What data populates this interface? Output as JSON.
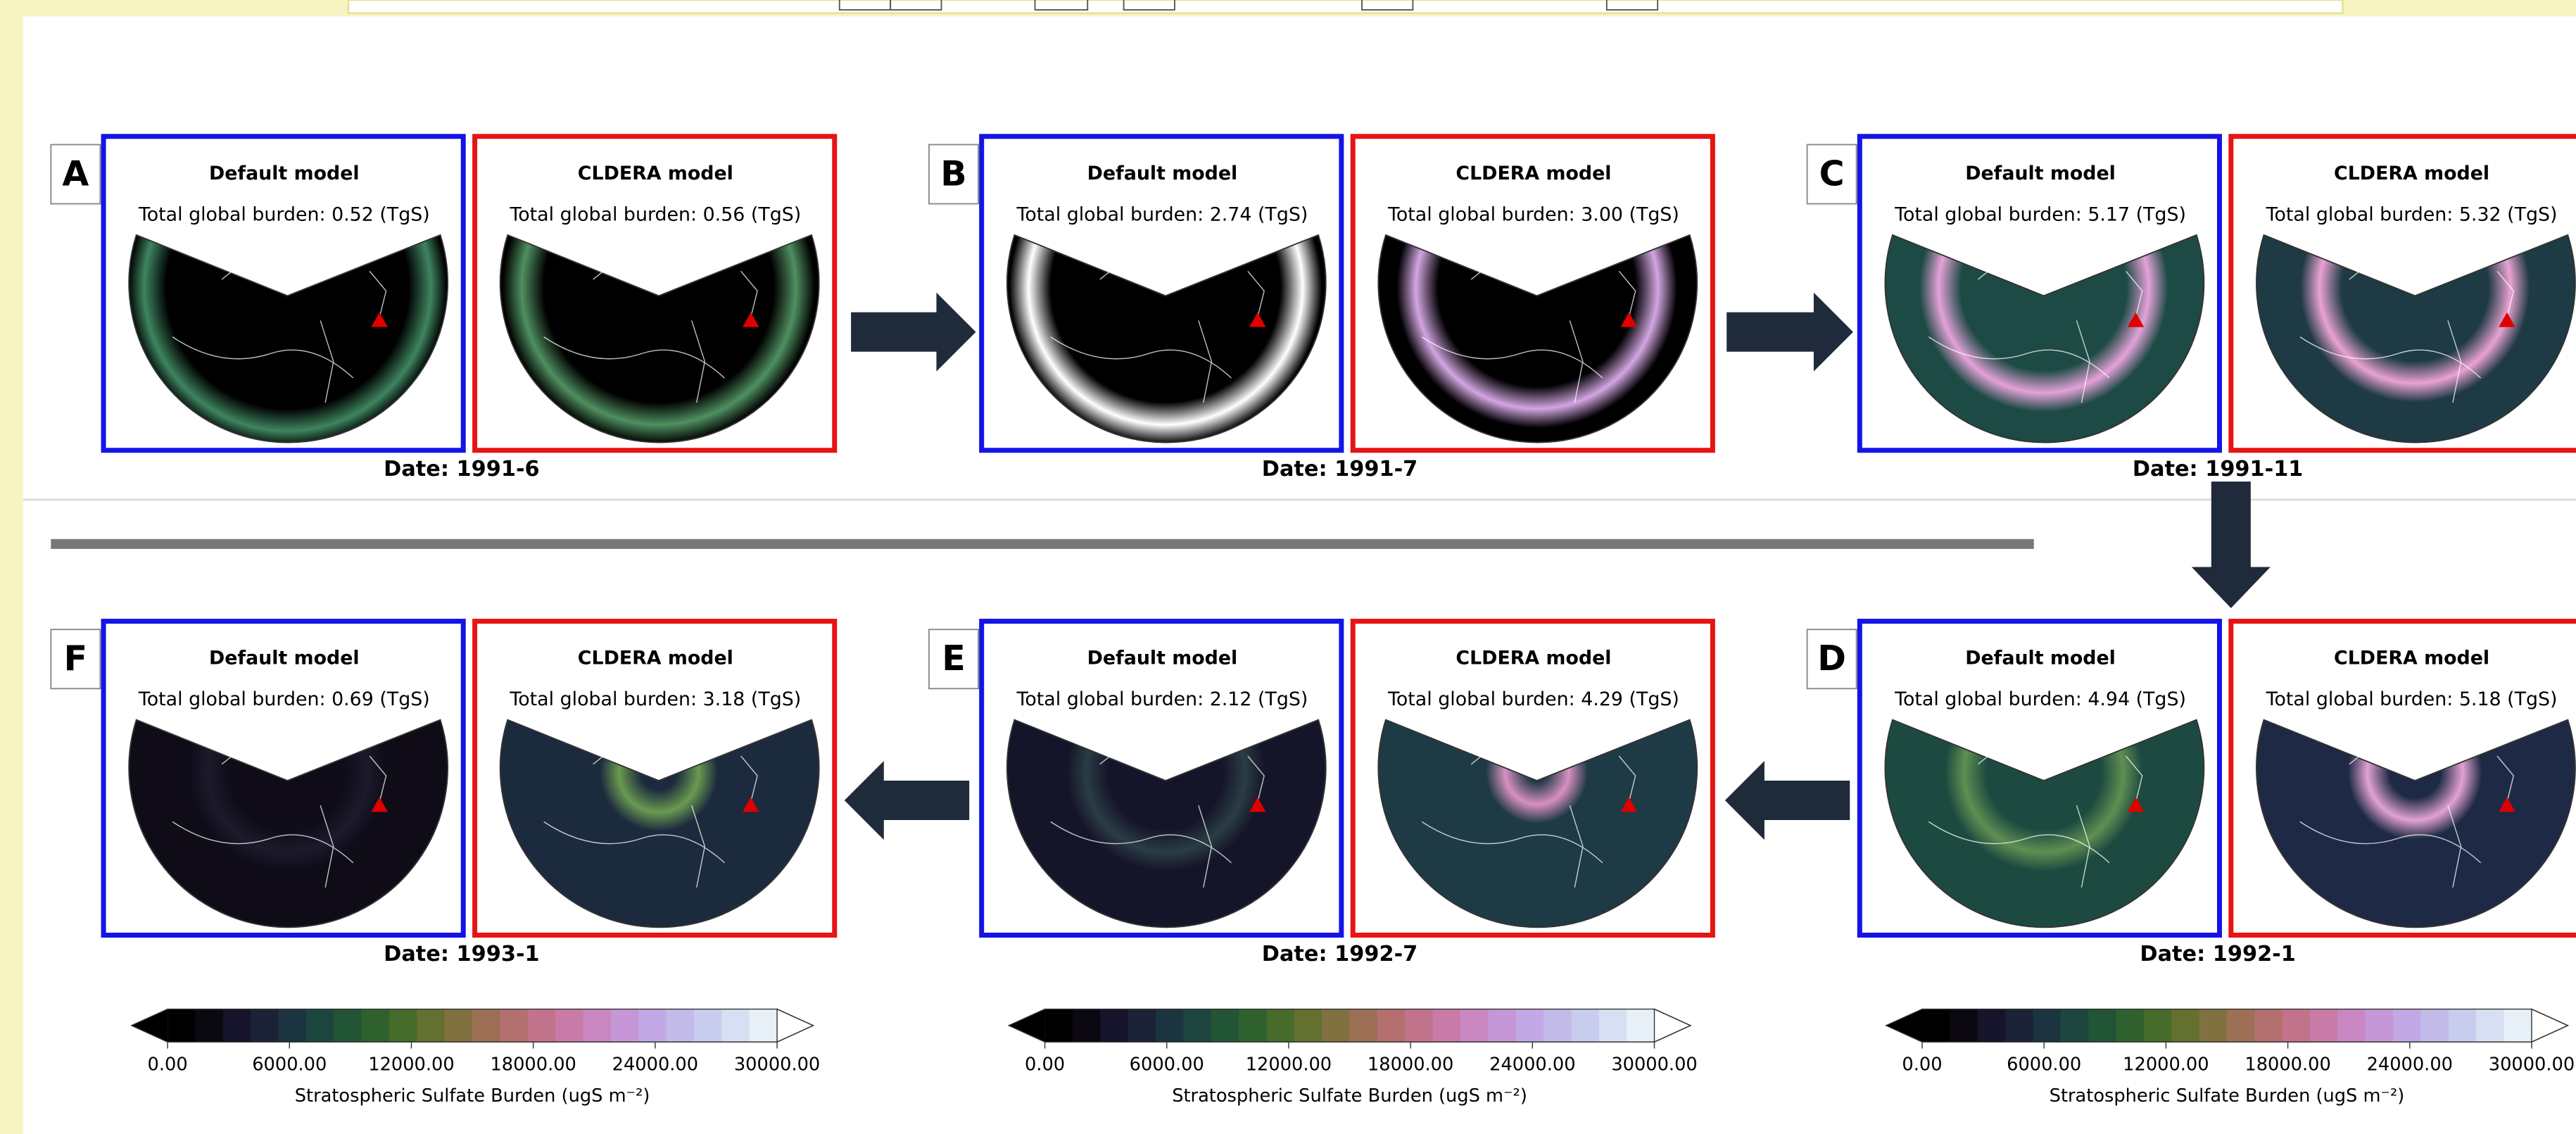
{
  "panels": [
    {
      "letter": "A",
      "date": "Date: 1991-6",
      "default": {
        "title": "Default model",
        "burden": "Total global burden: 0.52 (TgS)"
      },
      "cldera": {
        "title": "CLDERA model",
        "burden": "Total global burden: 0.56 (TgS)"
      }
    },
    {
      "letter": "B",
      "date": "Date: 1991-7",
      "default": {
        "title": "Default model",
        "burden": "Total global burden: 2.74 (TgS)"
      },
      "cldera": {
        "title": "CLDERA model",
        "burden": "Total global burden: 3.00 (TgS)"
      }
    },
    {
      "letter": "C",
      "date": "Date: 1991-11",
      "default": {
        "title": "Default model",
        "burden": "Total global burden: 5.17 (TgS)"
      },
      "cldera": {
        "title": "CLDERA model",
        "burden": "Total global burden: 5.32 (TgS)"
      }
    },
    {
      "letter": "D",
      "date": "Date: 1992-1",
      "default": {
        "title": "Default model",
        "burden": "Total global burden: 4.94 (TgS)"
      },
      "cldera": {
        "title": "CLDERA model",
        "burden": "Total global burden: 5.18 (TgS)"
      }
    },
    {
      "letter": "E",
      "date": "Date: 1992-7",
      "default": {
        "title": "Default model",
        "burden": "Total global burden: 2.12 (TgS)"
      },
      "cldera": {
        "title": "CLDERA model",
        "burden": "Total global burden: 4.29 (TgS)"
      }
    },
    {
      "letter": "F",
      "date": "Date: 1993-1",
      "default": {
        "title": "Default model",
        "burden": "Total global burden: 0.69 (TgS)"
      },
      "cldera": {
        "title": "CLDERA model",
        "burden": "Total global burden: 3.18 (TgS)"
      }
    }
  ],
  "colorbars": [
    {
      "ticks": [
        "0.00",
        "6000.00",
        "12000.00",
        "18000.00",
        "24000.00",
        "30000.00"
      ],
      "label": "Stratospheric Sulfate Burden (ugS m⁻²)"
    },
    {
      "ticks": [
        "0.00",
        "6000.00",
        "12000.00",
        "18000.00",
        "24000.00",
        "30000.00"
      ],
      "label": "Stratospheric Sulfate Burden (ugS m⁻²)"
    },
    {
      "ticks": [
        "0.00",
        "6000.00",
        "12000.00",
        "18000.00",
        "24000.00",
        "30000.00"
      ],
      "label": "Stratospheric Sulfate Burden (ugS m⁻²)"
    }
  ]
}
